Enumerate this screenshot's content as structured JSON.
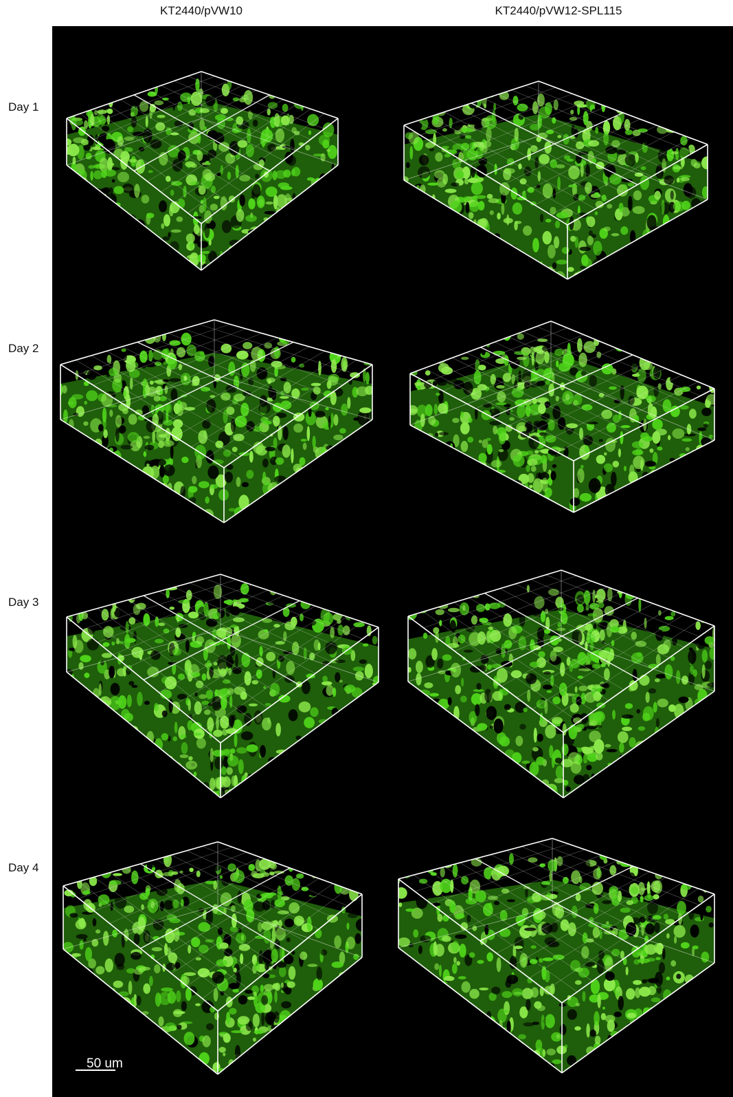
{
  "columns": [
    "KT2440/pVW10",
    "KT2440/pVW12-SPL115"
  ],
  "rows": [
    "Day 1",
    "Day 2",
    "Day 3",
    "Day 4"
  ],
  "scale_bar": {
    "label": "50 um"
  },
  "colors": {
    "background": "#000000",
    "biofilm": "#4fd41a",
    "grid": "#ffffff"
  }
}
